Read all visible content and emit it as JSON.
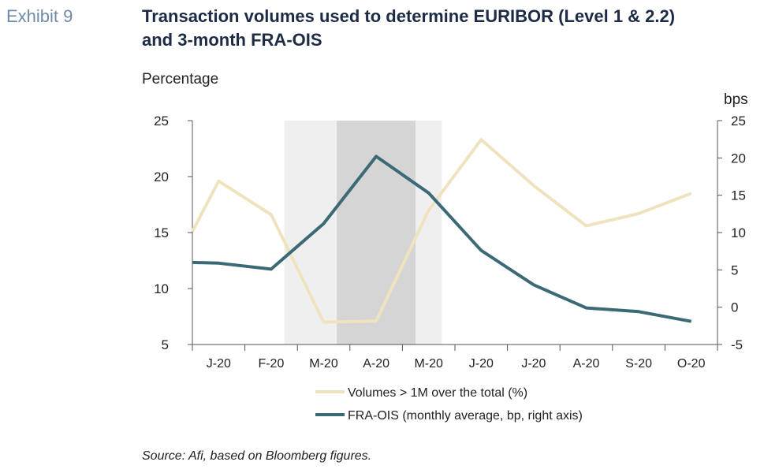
{
  "exhibit_label": "Exhibit 9",
  "title_line1": "Transaction volumes used to determine EURIBOR (Level 1 & 2.2)",
  "title_line2": "and 3-month FRA-OIS",
  "source": "Source: Afi, based on Bloomberg figures.",
  "chart_data": {
    "type": "line",
    "ylabel": "Percentage",
    "y2label": "bps",
    "categories": [
      "J-20",
      "F-20",
      "M-20",
      "A-20",
      "M-20",
      "J-20",
      "J-20",
      "A-20",
      "S-20",
      "O-20"
    ],
    "ylim": [
      5,
      25
    ],
    "yticks": [
      "25",
      "20",
      "15",
      "10",
      "5"
    ],
    "y2lim": [
      -5,
      25
    ],
    "y2ticks": [
      "25",
      "20",
      "15",
      "10",
      "5",
      "0",
      "-5"
    ],
    "series": [
      {
        "name": "Volumes  > 1M over the total (%)",
        "axis": "left",
        "color": "#efe3bf",
        "x": [
          0,
          0.5,
          1.5,
          2.5,
          3.5,
          4.5,
          5.5,
          6.5,
          7.5,
          8.5,
          9.5
        ],
        "values": [
          15.1,
          19.6,
          16.6,
          7.0,
          7.1,
          17.0,
          23.3,
          19.2,
          15.6,
          16.7,
          18.5
        ]
      },
      {
        "name": "FRA-OIS (monthly average, bp, right axis)",
        "axis": "right",
        "color": "#3b6a76",
        "x": [
          0,
          0.5,
          1.5,
          2.5,
          3.5,
          4.5,
          5.5,
          6.5,
          7.5,
          8.5,
          9.5
        ],
        "values": [
          6.0,
          5.9,
          5.1,
          11.2,
          20.2,
          15.3,
          7.6,
          3.0,
          -0.1,
          -0.6,
          -1.9
        ]
      }
    ],
    "shaded_regions": [
      {
        "from": 1.75,
        "to": 4.75,
        "color": "#efefef"
      },
      {
        "from": 2.75,
        "to": 4.25,
        "color": "#d5d5d5"
      }
    ],
    "grid": false,
    "legend_position": "bottom"
  }
}
